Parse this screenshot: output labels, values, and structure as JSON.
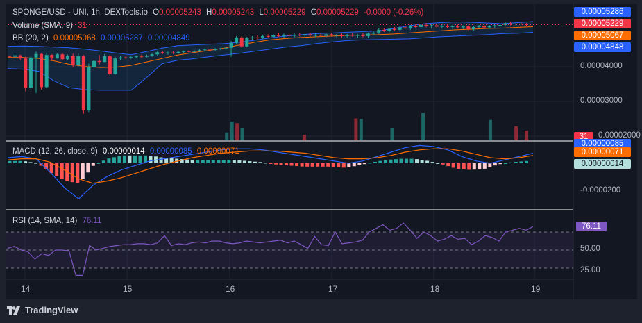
{
  "header": {
    "pair": "SPONGE/USD - UNI, 1h, DEXTools.io",
    "open_label": "O",
    "open": "0.00005243",
    "high_label": "H",
    "high": "0.00005243",
    "low_label": "L",
    "low": "0.00005229",
    "close_label": "C",
    "close": "0.00005229",
    "change": "-0.0000 (-0.26%)"
  },
  "volume_legend": {
    "label": "Volume (SMA, 9)",
    "value": "31"
  },
  "bb_legend": {
    "label": "BB (20, 2)",
    "basis": "0.00005068",
    "upper": "0.00005287",
    "lower": "0.00004849"
  },
  "macd_legend": {
    "label": "MACD (12, 26, close, 9)",
    "hist": "0.00000014",
    "macd": "0.00000085",
    "signal": "0.00000071"
  },
  "rsi_legend": {
    "label": "RSI (14, SMA, 14)",
    "value": "76.11"
  },
  "price_axis": {
    "badges": [
      {
        "text": "0.00005286",
        "color": "#2962ff"
      },
      {
        "text": "0.00005229",
        "color": "#f23645"
      },
      {
        "text": "0.00005067",
        "color": "#ff6d00"
      },
      {
        "text": "0.00004848",
        "color": "#2962ff"
      }
    ],
    "ticks": [
      "0.00004000",
      "0.00003000",
      "0.00002000"
    ],
    "volume_badge": {
      "text": "31",
      "color": "#f23645"
    }
  },
  "macd_axis": {
    "badges": [
      {
        "text": "0.00000085",
        "color": "#2962ff"
      },
      {
        "text": "0.00000071",
        "color": "#ff6d00"
      },
      {
        "text": "0.00000014",
        "color": "#b2dfdb"
      }
    ],
    "ticks": [
      "-0.0000200"
    ]
  },
  "rsi_axis": {
    "badge": {
      "text": "76.11",
      "color": "#7e57c2"
    },
    "ticks": [
      "50.00",
      "25.00"
    ]
  },
  "time_axis": {
    "labels": [
      "14",
      "15",
      "16",
      "17",
      "18",
      "19"
    ]
  },
  "branding": {
    "text": "TradingView",
    "icon": "tradingview-logo-icon"
  },
  "colors": {
    "up": "#26a69a",
    "down": "#f23645",
    "bb_band": "#2962ff",
    "bb_basis": "#ff6d00",
    "rsi": "#7e57c2",
    "background": "#131722"
  },
  "chart_data": {
    "type": "candlestick",
    "price_scale": {
      "min": 1e-05,
      "max": 5.3e-05
    },
    "candles": [
      [
        4.32e-05,
        4.34e-05,
        4.27e-05,
        4.3e-05
      ],
      [
        4.3e-05,
        4.36e-05,
        4.25e-05,
        4.34e-05
      ],
      [
        4.34e-05,
        4.36e-05,
        4.2e-05,
        4.25e-05
      ],
      [
        4.25e-05,
        4.3e-05,
        3.3e-05,
        3.4e-05
      ],
      [
        3.4e-05,
        4.32e-05,
        3.35e-05,
        4.28e-05
      ],
      [
        4.28e-05,
        4.45e-05,
        3.25e-05,
        4.38e-05
      ],
      [
        4.38e-05,
        4.4e-05,
        3.35e-05,
        3.42e-05
      ],
      [
        3.42e-05,
        4.42e-05,
        3.38e-05,
        4.35e-05
      ],
      [
        4.35e-05,
        4.38e-05,
        4.2e-05,
        4.25e-05
      ],
      [
        4.25e-05,
        4.4e-05,
        4.24e-05,
        4.37e-05
      ],
      [
        4.37e-05,
        4.4e-05,
        4.2e-05,
        4.23e-05
      ],
      [
        4.23e-05,
        4.36e-05,
        4.2e-05,
        4.33e-05
      ],
      [
        4.33e-05,
        4.39e-05,
        4e-05,
        4.05e-05
      ],
      [
        4.05e-05,
        4.4e-05,
        4e-05,
        4.32e-05
      ],
      [
        4.32e-05,
        4.35e-05,
        2.65e-05,
        2.75e-05
      ],
      [
        2.75e-05,
        4.1e-05,
        2.7e-05,
        4e-05
      ],
      [
        4e-05,
        4.2e-05,
        3.95e-05,
        4.18e-05
      ],
      [
        4.18e-05,
        4.35e-05,
        4.08e-05,
        4.15e-05
      ],
      [
        4.15e-05,
        4.38e-05,
        4.14e-05,
        4.32e-05
      ],
      [
        4.32e-05,
        4.36e-05,
        3.75e-05,
        3.8e-05
      ],
      [
        3.8e-05,
        4.3e-05,
        3.78e-05,
        4.25e-05
      ],
      [
        4.25e-05,
        4.32e-05,
        4.2e-05,
        4.28e-05
      ],
      [
        4.28e-05,
        4.31e-05,
        4.24e-05,
        4.26e-05
      ],
      [
        4.26e-05,
        4.32e-05,
        4.24e-05,
        4.29e-05
      ],
      [
        4.29e-05,
        4.34e-05,
        4.26e-05,
        4.31e-05
      ],
      [
        4.31e-05,
        4.36e-05,
        4.28e-05,
        4.3e-05
      ],
      [
        4.3e-05,
        4.36e-05,
        4.28e-05,
        4.33e-05
      ],
      [
        4.33e-05,
        4.4e-05,
        4.3e-05,
        4.37e-05
      ],
      [
        4.37e-05,
        4.46e-05,
        4.34e-05,
        4.43e-05
      ],
      [
        4.43e-05,
        4.46e-05,
        4.38e-05,
        4.4e-05
      ],
      [
        4.4e-05,
        4.45e-05,
        4.36e-05,
        4.42e-05
      ],
      [
        4.42e-05,
        4.46e-05,
        4.38e-05,
        4.41e-05
      ],
      [
        4.41e-05,
        4.46e-05,
        4.39e-05,
        4.44e-05
      ],
      [
        4.44e-05,
        4.48e-05,
        4.4e-05,
        4.46e-05
      ],
      [
        4.46e-05,
        4.49e-05,
        4.42e-05,
        4.44e-05
      ],
      [
        4.44e-05,
        4.5e-05,
        4.41e-05,
        4.47e-05
      ],
      [
        4.47e-05,
        4.52e-05,
        4.44e-05,
        4.49e-05
      ],
      [
        4.49e-05,
        4.54e-05,
        4.46e-05,
        4.51e-05
      ],
      [
        4.51e-05,
        4.55e-05,
        4.47e-05,
        4.5e-05
      ],
      [
        4.5e-05,
        4.55e-05,
        4.47e-05,
        4.52e-05
      ],
      [
        4.52e-05,
        4.56e-05,
        4.49e-05,
        4.54e-05
      ],
      [
        4.54e-05,
        4.58e-05,
        4.5e-05,
        4.56e-05
      ],
      [
        4.56e-05,
        4.75e-05,
        4.3e-05,
        4.7e-05
      ],
      [
        4.7e-05,
        4.9e-05,
        4.65e-05,
        4.86e-05
      ],
      [
        4.86e-05,
        4.9e-05,
        4.55e-05,
        4.6e-05
      ],
      [
        4.6e-05,
        4.88e-05,
        4.58e-05,
        4.84e-05
      ],
      [
        4.84e-05,
        4.9e-05,
        4.78e-05,
        4.86e-05
      ],
      [
        4.86e-05,
        4.92e-05,
        4.8e-05,
        4.84e-05
      ],
      [
        4.84e-05,
        4.94e-05,
        4.81e-05,
        4.9e-05
      ],
      [
        4.9e-05,
        4.95e-05,
        4.84e-05,
        4.88e-05
      ],
      [
        4.88e-05,
        4.96e-05,
        4.85e-05,
        4.92e-05
      ],
      [
        4.92e-05,
        4.98e-05,
        4.87e-05,
        4.9e-05
      ],
      [
        4.9e-05,
        4.97e-05,
        4.86e-05,
        4.94e-05
      ],
      [
        4.94e-05,
        4.98e-05,
        4.88e-05,
        4.91e-05
      ],
      [
        4.91e-05,
        4.97e-05,
        4.86e-05,
        4.94e-05
      ],
      [
        4.94e-05,
        4.98e-05,
        4.89e-05,
        4.92e-05
      ],
      [
        4.92e-05,
        4.97e-05,
        4.87e-05,
        4.95e-05
      ],
      [
        4.95e-05,
        4.99e-05,
        4.89e-05,
        4.92e-05
      ],
      [
        4.92e-05,
        4.97e-05,
        4.87e-05,
        4.93e-05
      ],
      [
        4.93e-05,
        4.98e-05,
        4.88e-05,
        4.91e-05
      ],
      [
        4.91e-05,
        4.97e-05,
        4.86e-05,
        4.95e-05
      ],
      [
        4.95e-05,
        4.99e-05,
        4.89e-05,
        4.92e-05
      ],
      [
        4.92e-05,
        4.96e-05,
        4.87e-05,
        4.93e-05
      ],
      [
        4.93e-05,
        4.97e-05,
        4.86e-05,
        4.9e-05
      ],
      [
        4.9e-05,
        4.96e-05,
        4.84e-05,
        4.94e-05
      ],
      [
        4.94e-05,
        4.98e-05,
        4.88e-05,
        4.91e-05
      ],
      [
        4.91e-05,
        4.96e-05,
        4.85e-05,
        4.93e-05
      ],
      [
        4.93e-05,
        4.98e-05,
        4.87e-05,
        4.9e-05
      ],
      [
        4.9e-05,
        5e-05,
        4.84e-05,
        4.97e-05
      ],
      [
        4.97e-05,
        5.03e-05,
        4.92e-05,
        5e-05
      ],
      [
        5e-05,
        5.12e-05,
        4.96e-05,
        5.08e-05
      ],
      [
        5.08e-05,
        5.12e-05,
        5.02e-05,
        5.05e-05
      ],
      [
        5.05e-05,
        5.14e-05,
        5.01e-05,
        5.11e-05
      ],
      [
        5.11e-05,
        5.16e-05,
        5.05e-05,
        5.08e-05
      ],
      [
        5.08e-05,
        5.18e-05,
        5.05e-05,
        5.15e-05
      ],
      [
        5.15e-05,
        5.2e-05,
        5.1e-05,
        5.12e-05
      ],
      [
        5.12e-05,
        5.22e-05,
        5.08e-05,
        5.19e-05
      ],
      [
        5.19e-05,
        5.24e-05,
        5.12e-05,
        5.16e-05
      ],
      [
        5.16e-05,
        5.26e-05,
        5.1e-05,
        5.22e-05
      ],
      [
        5.22e-05,
        5.28e-05,
        5.15e-05,
        5.18e-05
      ],
      [
        5.18e-05,
        5.26e-05,
        5.12e-05,
        5.21e-05
      ],
      [
        5.21e-05,
        5.26e-05,
        5.14e-05,
        5.17e-05
      ],
      [
        5.17e-05,
        5.24e-05,
        5.12e-05,
        5.2e-05
      ],
      [
        5.2e-05,
        5.24e-05,
        5.14e-05,
        5.16e-05
      ],
      [
        5.16e-05,
        5.22e-05,
        5.1e-05,
        5.19e-05
      ],
      [
        5.19e-05,
        5.23e-05,
        5.12e-05,
        5.15e-05
      ],
      [
        5.15e-05,
        5.21e-05,
        5.1e-05,
        5.18e-05
      ],
      [
        5.18e-05,
        5.22e-05,
        5.05e-05,
        5.1e-05
      ],
      [
        5.1e-05,
        5.2e-05,
        5.06e-05,
        5.16e-05
      ],
      [
        5.16e-05,
        5.22e-05,
        5.12e-05,
        5.19e-05
      ],
      [
        5.19e-05,
        5.23e-05,
        5.13e-05,
        5.15e-05
      ],
      [
        5.15e-05,
        5.21e-05,
        5.11e-05,
        5.18e-05
      ],
      [
        5.18e-05,
        5.23e-05,
        5.14e-05,
        5.21e-05
      ],
      [
        5.21e-05,
        5.26e-05,
        5.16e-05,
        5.22e-05
      ],
      [
        5.22e-05,
        5.3e-05,
        5.18e-05,
        5.27e-05
      ],
      [
        5.27e-05,
        5.31e-05,
        5.21e-05,
        5.24e-05
      ],
      [
        5.24e-05,
        5.29e-05,
        5.2e-05,
        5.26e-05
      ],
      [
        5.26e-05,
        5.3e-05,
        5.22e-05,
        5.24e-05
      ],
      [
        5.24e-05,
        5.28e-05,
        5.2e-05,
        5.23e-05
      ]
    ],
    "bb_upper": [
      4.6e-05,
      4.61e-05,
      4.6e-05,
      4.58e-05,
      4.56e-05,
      4.52e-05,
      4.47e-05,
      4.41e-05,
      4.36e-05,
      4.45e-05,
      4.55e-05,
      4.62e-05,
      4.64e-05,
      4.66e-05,
      4.68e-05,
      4.72e-05,
      4.78e-05,
      4.85e-05,
      4.9e-05,
      4.94e-05,
      4.97e-05,
      4.99e-05,
      5.01e-05,
      5.03e-05,
      5.05e-05,
      5.12e-05,
      5.2e-05,
      5.26e-05,
      5.29e-05,
      5.31e-05,
      5.3e-05,
      5.28e-05,
      5.26e-05,
      5.29e-05,
      5.32e-05
    ],
    "bb_basis": [
      4.28e-05,
      4.28e-05,
      4.25e-05,
      4.18e-05,
      4.08e-05,
      4.02e-05,
      3.99e-05,
      4e-05,
      4.05e-05,
      4.15e-05,
      4.25e-05,
      4.35e-05,
      4.42e-05,
      4.48e-05,
      4.55e-05,
      4.64e-05,
      4.72e-05,
      4.79e-05,
      4.83e-05,
      4.86e-05,
      4.88e-05,
      4.9e-05,
      4.92e-05,
      4.93e-05,
      4.94e-05,
      4.96e-05,
      4.99e-05,
      5.02e-05,
      5.05e-05,
      5.08e-05,
      5.1e-05,
      5.12e-05,
      5.13e-05,
      5.15e-05,
      5.17e-05
    ],
    "bb_lower": [
      3.96e-05,
      3.94e-05,
      3.88e-05,
      3.6e-05,
      3.4e-05,
      3.35e-05,
      3.33e-05,
      3.33e-05,
      3.33e-05,
      3.7e-05,
      4.1e-05,
      4.2e-05,
      4.24e-05,
      4.3e-05,
      4.35e-05,
      4.4e-05,
      4.46e-05,
      4.52e-05,
      4.58e-05,
      4.62e-05,
      4.68e-05,
      4.73e-05,
      4.77e-05,
      4.79e-05,
      4.8e-05,
      4.81e-05,
      4.82e-05,
      4.85e-05,
      4.88e-05,
      4.9e-05,
      4.92e-05,
      4.94e-05,
      4.97e-05,
      4.98e-05,
      5.01e-05
    ],
    "volume": [
      0,
      0,
      0,
      0,
      0,
      0,
      0,
      0,
      0,
      0,
      0,
      0,
      0,
      0,
      0,
      0,
      0,
      0,
      0,
      0,
      0,
      0,
      0,
      0,
      0,
      0,
      0,
      0,
      0,
      0,
      0,
      0,
      0,
      0,
      0,
      0,
      0,
      0,
      0,
      0,
      0,
      0,
      25,
      60,
      55,
      40,
      0,
      0,
      0,
      0,
      0,
      0,
      0,
      0,
      0,
      0,
      0,
      18,
      0,
      0,
      0,
      0,
      0,
      0,
      0,
      0,
      0,
      70,
      68,
      0,
      0,
      0,
      0,
      0,
      40,
      0,
      0,
      0,
      0,
      0,
      88,
      0,
      0,
      0,
      0,
      0,
      0,
      0,
      0,
      0,
      0,
      0,
      0,
      65,
      0,
      0,
      0,
      0,
      45,
      0,
      31
    ],
    "macd": [
      5e-07,
      6e-07,
      4e-07,
      -8e-07,
      -2.2e-06,
      -3.2e-06,
      -2e-06,
      -1.2e-06,
      -6e-07,
      -2e-07,
      2e-07,
      4e-07,
      6e-07,
      8e-07,
      1e-06,
      1.2e-06,
      1.3e-06,
      1.3e-06,
      1.2e-06,
      1e-06,
      8e-07,
      6e-07,
      4e-07,
      2e-07,
      0.0,
      2e-07,
      6e-07,
      1e-06,
      1.4e-06,
      1.6e-06,
      1.5e-06,
      1.2e-06,
      6e-07,
      2e-07,
      0.0,
      3e-07,
      6e-07,
      9e-07
    ],
    "macd_signal": [
      3e-07,
      4e-07,
      4e-07,
      1e-07,
      -6e-07,
      -1.4e-06,
      -1.8e-06,
      -1.6e-06,
      -1.3e-06,
      -9e-07,
      -5e-07,
      -1e-07,
      2e-07,
      5e-07,
      7e-07,
      9e-07,
      1e-06,
      1.1e-06,
      1.1e-06,
      1.1e-06,
      1e-06,
      9e-07,
      7e-07,
      5e-07,
      4e-07,
      4e-07,
      5e-07,
      7e-07,
      1e-06,
      1.2e-06,
      1.3e-06,
      1.3e-06,
      1.1e-06,
      8e-07,
      5e-07,
      4e-07,
      5e-07,
      7e-07
    ],
    "rsi": [
      52,
      54,
      50,
      48,
      40,
      46,
      44,
      50,
      50,
      49,
      22,
      22,
      55,
      50,
      52,
      54,
      55,
      56,
      56,
      57,
      57,
      56,
      58,
      66,
      55,
      57,
      56,
      58,
      59,
      58,
      60,
      60,
      58,
      57,
      58,
      60,
      59,
      58,
      59,
      60,
      61,
      58,
      60,
      56,
      52,
      65,
      56,
      55,
      70,
      57,
      58,
      59,
      61,
      70,
      74,
      78,
      72,
      74,
      80,
      72,
      63,
      70,
      66,
      60,
      62,
      66,
      62,
      63,
      56,
      60,
      66,
      64,
      60,
      70,
      72,
      74,
      72,
      76
    ],
    "time_labels_positions": [
      "14",
      "15",
      "16",
      "17",
      "18",
      "19"
    ]
  }
}
